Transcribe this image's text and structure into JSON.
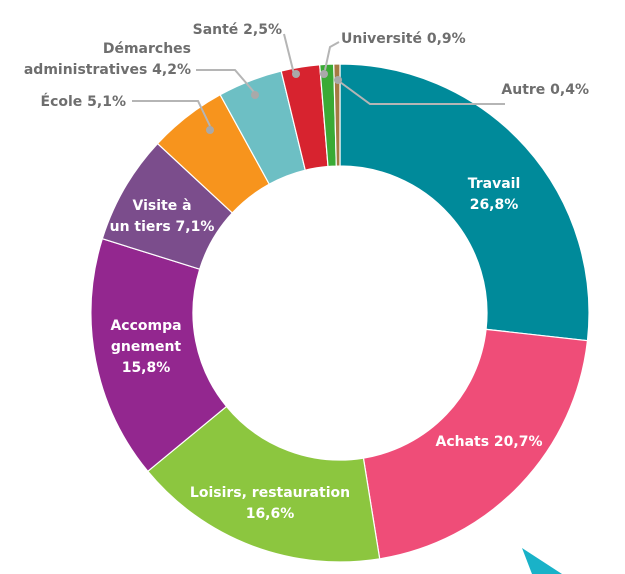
{
  "chart_data": {
    "type": "pie",
    "style": "donut",
    "start": "top, clockwise",
    "slices": [
      {
        "lines": [
          "Travail",
          "26,8%"
        ],
        "value": 26.8,
        "color": "#008a9a"
      },
      {
        "lines": [
          "Achats 20,7%"
        ],
        "value": 20.7,
        "color": "#ef4d78"
      },
      {
        "lines": [
          "Loisirs, restauration",
          "16,6%"
        ],
        "value": 16.6,
        "color": "#8cc63f"
      },
      {
        "lines": [
          "Accompa",
          "gnement",
          "15,8%"
        ],
        "value": 15.8,
        "color": "#93278f"
      },
      {
        "lines": [
          "Visite à",
          "un tiers 7,1%"
        ],
        "value": 7.1,
        "color": "#7b4d8c"
      },
      {
        "lines": [
          "École 5,1%"
        ],
        "value": 5.1,
        "color": "#f7941d"
      },
      {
        "lines": [
          "Démarches",
          "administratives 4,2%"
        ],
        "value": 4.2,
        "color": "#6dbfc4"
      },
      {
        "lines": [
          "Santé 2,5%"
        ],
        "value": 2.5,
        "color": "#d7232f"
      },
      {
        "lines": [
          "Université 0,9%"
        ],
        "value": 0.9,
        "color": "#3aaa35"
      },
      {
        "lines": [
          "Autre 0,4%"
        ],
        "value": 0.4,
        "color": "#a57a43"
      }
    ]
  }
}
